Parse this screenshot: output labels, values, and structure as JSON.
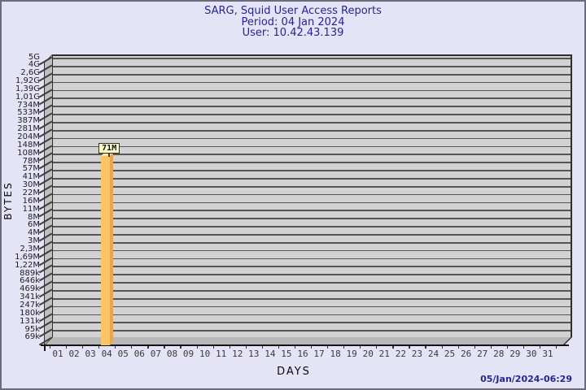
{
  "header": {
    "title": "SARG, Squid User Access Reports",
    "subtitle": "Period: 04 Jan 2024",
    "user_line": "User: 10.42.43.139"
  },
  "footer": {
    "timestamp": "05/Jan/2024-06:29"
  },
  "colors": {
    "background": "#E4E4F6",
    "title_navy": "#26268E",
    "plot_wall_gray": "#D2D2D2",
    "gridline_gray": "#565656",
    "bar_front": "#FCC468",
    "bar_side": "#EDA44C",
    "bar_top": "#FDDF9E",
    "bar_label_bg": "#FEFBC8"
  },
  "chart_data": {
    "type": "bar",
    "title": "SARG, Squid User Access Reports",
    "subtitle": "Period: 04 Jan 2024",
    "user_line": "User: 10.42.43.139",
    "xlabel": "DAYS",
    "ylabel": "BYTES",
    "y_scale": "log",
    "grid": "horizontal",
    "legend_position": "none",
    "y_tick_labels": [
      "5G",
      "4G",
      "2,6G",
      "1,92G",
      "1,39G",
      "1,01G",
      "734M",
      "533M",
      "387M",
      "281M",
      "204M",
      "148M",
      "108M",
      "78M",
      "57M",
      "41M",
      "30M",
      "22M",
      "16M",
      "11M",
      "8M",
      "6M",
      "4M",
      "3M",
      "2,3M",
      "1,69M",
      "1,22M",
      "889k",
      "646k",
      "469k",
      "341k",
      "247k",
      "180k",
      "131k",
      "95k",
      "69k"
    ],
    "x_tick_labels": [
      "01",
      "02",
      "03",
      "04",
      "05",
      "06",
      "07",
      "08",
      "09",
      "10",
      "11",
      "12",
      "13",
      "14",
      "15",
      "16",
      "17",
      "18",
      "19",
      "20",
      "21",
      "22",
      "23",
      "24",
      "25",
      "26",
      "27",
      "28",
      "29",
      "30",
      "31"
    ],
    "bars": [
      {
        "day": "04",
        "value_label": "71M",
        "value_bytes": 71000000
      }
    ]
  }
}
